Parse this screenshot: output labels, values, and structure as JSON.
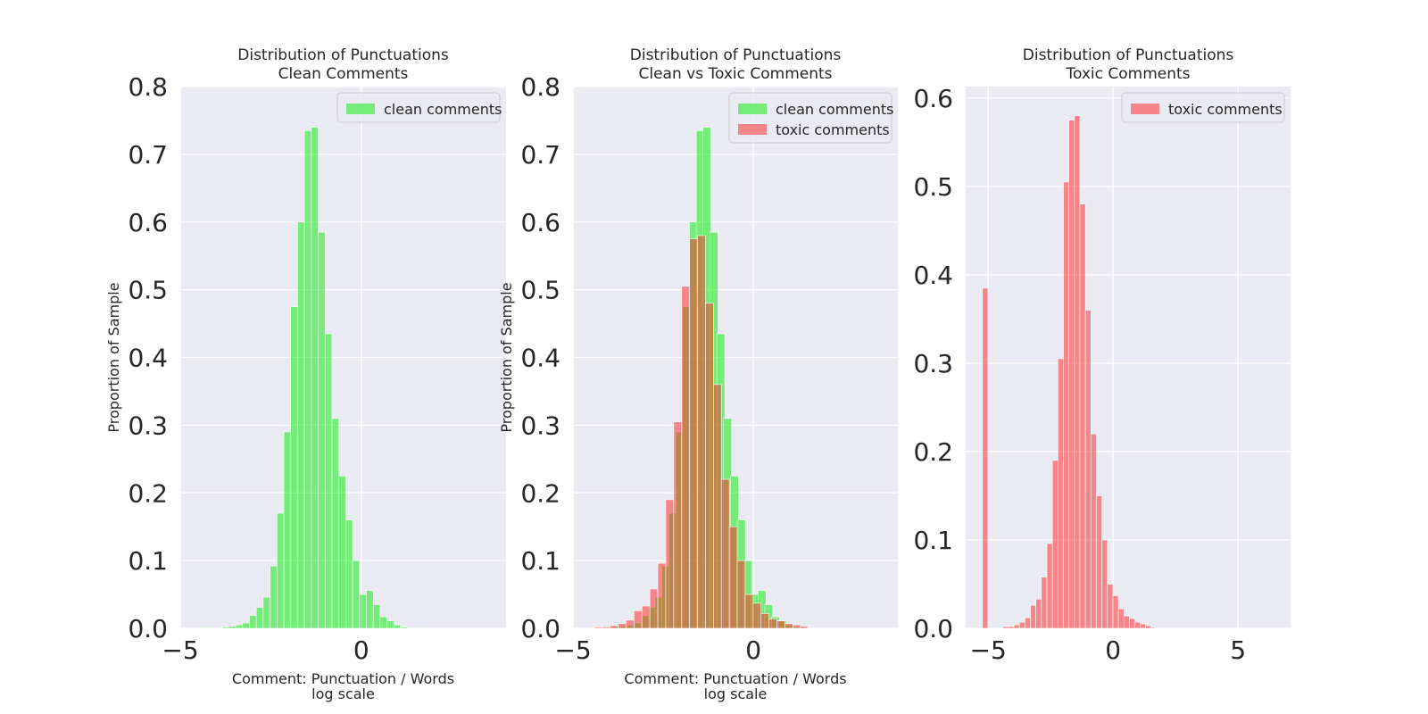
{
  "colors": {
    "clean": "#00ee00",
    "toxic": "#ff1f1f",
    "background": "#eaeaf2",
    "grid": "#ffffff"
  },
  "chart_data": [
    {
      "type": "bar",
      "title": "Distribution of Punctuations\nClean Comments",
      "xlabel": "Comment: Punctuation / Words\nlog scale",
      "ylabel": "Proportion of Sample",
      "xlim": [
        -5,
        4
      ],
      "ylim": [
        0,
        0.8
      ],
      "xticks": [
        "−5",
        "0"
      ],
      "yticks": [
        "0.0",
        "0.1",
        "0.2",
        "0.3",
        "0.4",
        "0.5",
        "0.6",
        "0.7",
        "0.8"
      ],
      "bin_width": 0.19,
      "legend": "upper right",
      "series": [
        {
          "name": "clean comments",
          "color_key": "clean",
          "bin_centers": [
            -4.325,
            -4.135,
            -3.945,
            -3.755,
            -3.565,
            -3.375,
            -3.185,
            -2.995,
            -2.805,
            -2.615,
            -2.425,
            -2.235,
            -2.045,
            -1.855,
            -1.665,
            -1.475,
            -1.285,
            -1.095,
            -0.905,
            -0.715,
            -0.525,
            -0.335,
            -0.145,
            0.045,
            0.235,
            0.425,
            0.615,
            0.805,
            0.995,
            1.185,
            1.375,
            1.565
          ],
          "values": [
            0.001,
            0.001,
            0.001,
            0.002,
            0.003,
            0.005,
            0.008,
            0.019,
            0.031,
            0.046,
            0.092,
            0.17,
            0.29,
            0.475,
            0.6,
            0.735,
            0.74,
            0.585,
            0.435,
            0.31,
            0.225,
            0.16,
            0.1,
            0.05,
            0.056,
            0.035,
            0.017,
            0.011,
            0.005,
            0.002,
            0.001,
            0.001
          ]
        }
      ]
    },
    {
      "type": "bar",
      "title": "Distribution of Punctuations\nClean vs Toxic Comments",
      "xlabel": "Comment: Punctuation / Words\nlog scale",
      "ylabel": "Proportion of Sample",
      "xlim": [
        -5,
        4
      ],
      "ylim": [
        0,
        0.8
      ],
      "xticks": [
        "−5",
        "0"
      ],
      "yticks": [
        "0.0",
        "0.1",
        "0.2",
        "0.3",
        "0.4",
        "0.5",
        "0.6",
        "0.7",
        "0.8"
      ],
      "bin_width": 0.22,
      "legend": "upper right",
      "series": [
        {
          "name": "clean comments",
          "color_key": "clean",
          "bin_centers": [
            -4.325,
            -4.135,
            -3.945,
            -3.755,
            -3.565,
            -3.375,
            -3.185,
            -2.995,
            -2.805,
            -2.615,
            -2.425,
            -2.235,
            -2.045,
            -1.855,
            -1.665,
            -1.475,
            -1.285,
            -1.095,
            -0.905,
            -0.715,
            -0.525,
            -0.335,
            -0.145,
            0.045,
            0.235,
            0.425,
            0.615,
            0.805,
            0.995,
            1.185,
            1.375,
            1.565
          ],
          "values": [
            0.001,
            0.001,
            0.001,
            0.002,
            0.003,
            0.005,
            0.008,
            0.019,
            0.031,
            0.046,
            0.092,
            0.17,
            0.29,
            0.475,
            0.6,
            0.735,
            0.74,
            0.585,
            0.435,
            0.31,
            0.225,
            0.16,
            0.1,
            0.05,
            0.056,
            0.035,
            0.017,
            0.011,
            0.005,
            0.002,
            0.001,
            0.001
          ]
        },
        {
          "name": "toxic comments",
          "color_key": "toxic",
          "bin_centers": [
            -4.3,
            -4.08,
            -3.86,
            -3.64,
            -3.42,
            -3.2,
            -2.98,
            -2.76,
            -2.54,
            -2.32,
            -2.1,
            -1.88,
            -1.66,
            -1.44,
            -1.22,
            -1.0,
            -0.78,
            -0.56,
            -0.34,
            -0.12,
            0.1,
            0.32,
            0.54,
            0.76,
            0.98,
            1.2,
            1.4,
            1.6
          ],
          "values": [
            0.002,
            0.002,
            0.004,
            0.007,
            0.012,
            0.026,
            0.033,
            0.058,
            0.096,
            0.19,
            0.305,
            0.505,
            0.575,
            0.58,
            0.48,
            0.36,
            0.22,
            0.15,
            0.1,
            0.05,
            0.037,
            0.022,
            0.014,
            0.011,
            0.007,
            0.005,
            0.003,
            0.001
          ]
        }
      ]
    },
    {
      "type": "bar",
      "title": "Distribution of Punctuations\nToxic Comments",
      "xlabel": "",
      "ylabel": "",
      "xlim": [
        -5.9,
        7.1
      ],
      "ylim": [
        0,
        0.613
      ],
      "xticks": [
        "−5",
        "0",
        "5"
      ],
      "yticks": [
        "0.0",
        "0.1",
        "0.2",
        "0.3",
        "0.4",
        "0.5",
        "0.6"
      ],
      "bin_width": 0.22,
      "legend": "upper right",
      "series": [
        {
          "name": "toxic comments",
          "color_key": "toxic",
          "bin_centers": [
            -5.12,
            -4.3,
            -4.08,
            -3.86,
            -3.64,
            -3.42,
            -3.2,
            -2.98,
            -2.76,
            -2.54,
            -2.32,
            -2.1,
            -1.88,
            -1.66,
            -1.44,
            -1.22,
            -1.0,
            -0.78,
            -0.56,
            -0.34,
            -0.12,
            0.1,
            0.32,
            0.54,
            0.76,
            0.98,
            1.2,
            1.4,
            1.6
          ],
          "values": [
            0.385,
            0.002,
            0.002,
            0.004,
            0.007,
            0.012,
            0.026,
            0.033,
            0.058,
            0.096,
            0.19,
            0.305,
            0.505,
            0.575,
            0.58,
            0.48,
            0.36,
            0.22,
            0.15,
            0.1,
            0.05,
            0.037,
            0.022,
            0.014,
            0.011,
            0.007,
            0.005,
            0.003,
            0.001
          ]
        }
      ]
    }
  ]
}
